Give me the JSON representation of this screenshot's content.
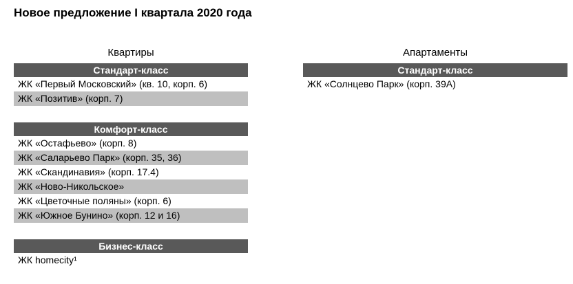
{
  "title": "Новое предложение I квартала 2020 года",
  "colors": {
    "section_header_bg": "#595959",
    "section_header_text": "#ffffff",
    "row_alt_bg": "#bfbfbf",
    "text": "#000000",
    "background": "#ffffff"
  },
  "columns": [
    {
      "heading": "Квартиры",
      "sections": [
        {
          "label": "Стандарт-класс",
          "rows": [
            "ЖК «Первый Московский» (кв. 10, корп. 6)",
            "ЖК «Позитив» (корп. 7)"
          ]
        },
        {
          "label": "Комфорт-класс",
          "rows": [
            "ЖК «Остафьево» (корп. 8)",
            "ЖК «Саларьево Парк» (корп. 35, 36)",
            "ЖК «Скандинавия» (корп. 17.4)",
            "ЖК «Ново-Никольское»",
            "ЖК «Цветочные поляны» (корп. 6)",
            "ЖК «Южное Бунино» (корп. 12 и 16)"
          ]
        },
        {
          "label": "Бизнес-класс",
          "rows": [
            "ЖК homecity¹"
          ]
        }
      ]
    },
    {
      "heading": "Апартаменты",
      "sections": [
        {
          "label": "Стандарт-класс",
          "rows": [
            "ЖК «Солнцево Парк» (корп. 39А)"
          ]
        }
      ]
    }
  ]
}
